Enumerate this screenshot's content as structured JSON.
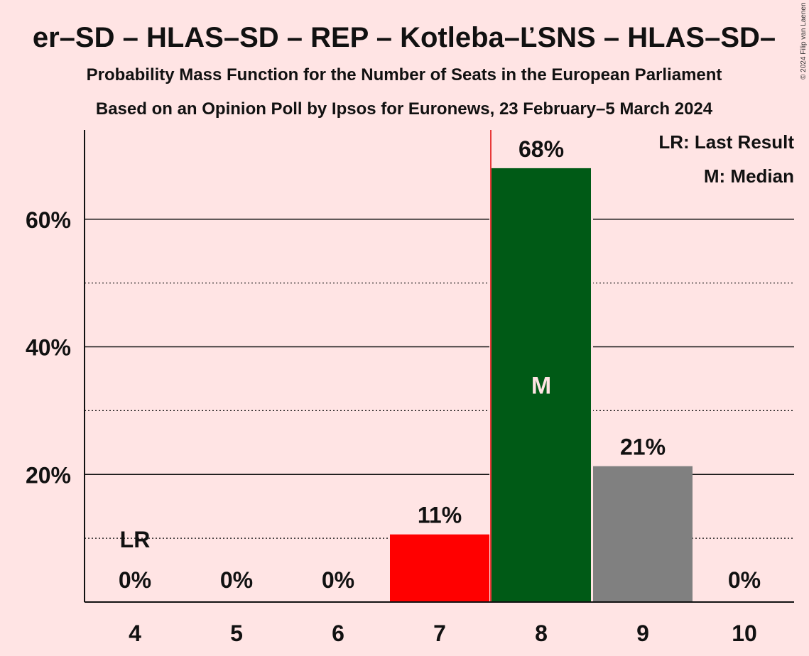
{
  "title": "er–SD – HLAS–SD – REP – Kotleba–ĽSNS – HLAS–SD–",
  "subtitle1": "Probability Mass Function for the Number of Seats in the European Parliament",
  "subtitle2": "Based on an Opinion Poll by Ipsos for Euronews, 23 February–5 March 2024",
  "copyright": "© 2024 Filip van Laenen",
  "legend": {
    "last_result": "LR: Last Result",
    "median": "M: Median"
  },
  "chart_data": {
    "type": "bar",
    "categories": [
      "4",
      "5",
      "6",
      "7",
      "8",
      "9",
      "10"
    ],
    "values": [
      0,
      0,
      0,
      10.6,
      68,
      21.3,
      0
    ],
    "value_labels": [
      "0%",
      "0%",
      "0%",
      "11%",
      "68%",
      "21%",
      "0%"
    ],
    "bar_colors": [
      "#FFE4E4",
      "#FFE4E4",
      "#FFE4E4",
      "#FF0000",
      "#005A16",
      "#808080",
      "#FFE4E4"
    ],
    "ylim": [
      0,
      74
    ],
    "y_ticks": [
      20,
      40,
      60
    ],
    "y_tick_labels": [
      "20%",
      "40%",
      "60%"
    ],
    "y_minor_ticks": [
      10,
      30,
      50
    ],
    "last_result_category": "4",
    "last_result_label": "LR",
    "last_result_value": 10,
    "median_category": "8",
    "median_label": "M",
    "median_value": 34,
    "xlabel": "",
    "ylabel": "",
    "legend_position": "top-right",
    "grid": true
  }
}
